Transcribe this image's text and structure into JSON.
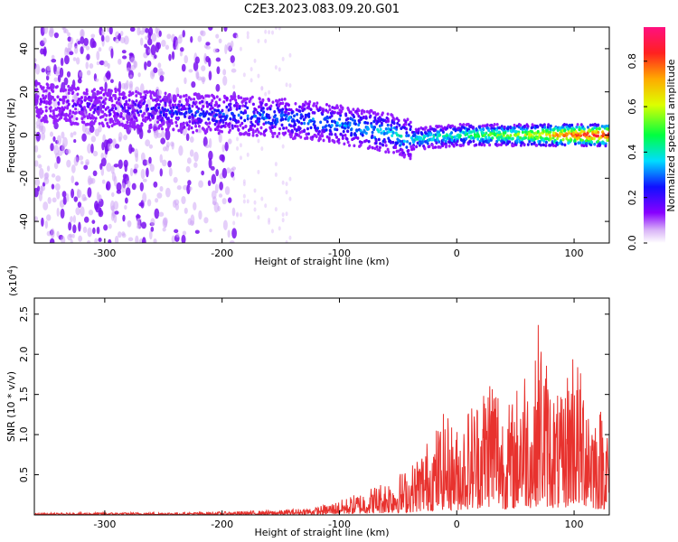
{
  "title": "C2E3.2023.083.09.20.G01",
  "colorbar": {
    "label": "Normalized spectral amplitude",
    "ticks": [
      "0.0",
      "0.2",
      "0.4",
      "0.6",
      "0.8"
    ],
    "tick_values": [
      0.0,
      0.2,
      0.4,
      0.6,
      0.8
    ],
    "range": [
      0.0,
      0.95
    ]
  },
  "chart_data": [
    {
      "type": "heatmap",
      "xlabel": "Height of straight line (km)",
      "ylabel": "Frequency (Hz)",
      "xlim": [
        -360,
        130
      ],
      "ylim": [
        -50,
        50
      ],
      "x_ticks": [
        -300,
        -200,
        -100,
        0,
        100
      ],
      "x_tick_labels": [
        "-300",
        "-200",
        "-100",
        "0",
        "100"
      ],
      "y_ticks": [
        -40,
        -20,
        0,
        20,
        40
      ],
      "y_tick_labels": [
        "-40",
        "-20",
        "0",
        "20",
        "40"
      ],
      "band_center": {
        "x": [
          -360,
          -220,
          -150,
          -100,
          -60,
          -40,
          -20,
          0,
          50,
          130
        ],
        "y": [
          15,
          10,
          8,
          5,
          1,
          -2,
          -1,
          0,
          0,
          0
        ]
      },
      "band_amplitude": {
        "x": [
          -360,
          -220,
          -100,
          -40,
          0,
          60,
          100,
          130
        ],
        "value": [
          0.1,
          0.25,
          0.32,
          0.38,
          0.45,
          0.6,
          0.85,
          0.9
        ]
      }
    },
    {
      "type": "line",
      "xlabel": "Height of straight line (km)",
      "ylabel": "SNR (10 * v/v)",
      "y_multiplier": "(x10",
      "y_multiplier_exp": "4",
      "y_multiplier_close": ")",
      "xlim": [
        -360,
        130
      ],
      "ylim": [
        0,
        27000
      ],
      "x_ticks": [
        -300,
        -200,
        -100,
        0,
        100
      ],
      "x_tick_labels": [
        "-300",
        "-200",
        "-100",
        "0",
        "100"
      ],
      "y_ticks": [
        5000,
        10000,
        15000,
        20000,
        25000
      ],
      "y_tick_labels": [
        "0.5",
        "1.0",
        "1.5",
        "2.0",
        "2.5"
      ],
      "series": [
        {
          "color": "#e8322e",
          "x": [
            -360,
            -300,
            -250,
            -200,
            -150,
            -120,
            -100,
            -80,
            -60,
            -40,
            -30,
            -20,
            -10,
            0,
            10,
            20,
            30,
            35,
            40,
            50,
            55,
            60,
            65,
            70,
            75,
            80,
            85,
            90,
            95,
            100,
            105,
            110,
            115,
            120,
            125,
            130
          ],
          "y": [
            200,
            300,
            300,
            400,
            600,
            1000,
            1800,
            3000,
            4500,
            6000,
            8500,
            10500,
            13000,
            11000,
            14000,
            16000,
            20500,
            18000,
            13500,
            15000,
            21000,
            19000,
            15500,
            26000,
            21000,
            17500,
            15500,
            14500,
            19500,
            24000,
            18000,
            20000,
            16000,
            13000,
            15000,
            11000
          ]
        }
      ]
    }
  ]
}
